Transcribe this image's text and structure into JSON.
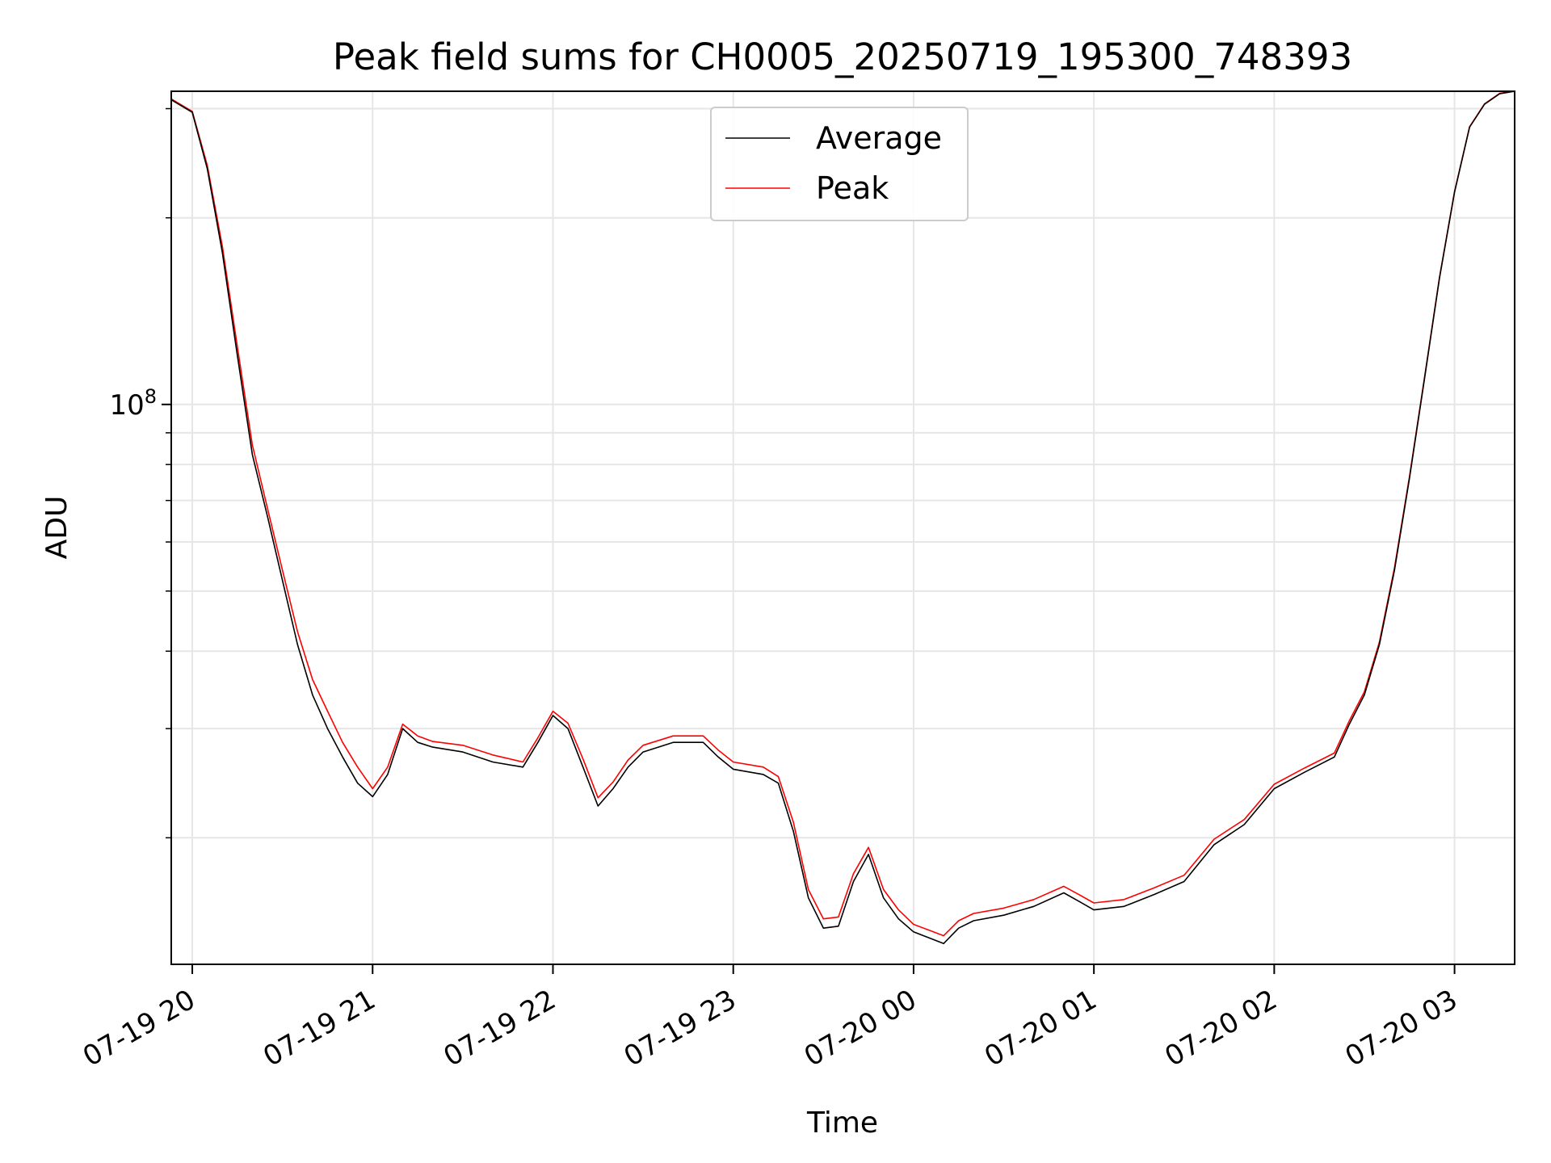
{
  "chart_data": {
    "type": "line",
    "title": "Peak field sums for CH0005_20250719_195300_748393",
    "xlabel": "Time",
    "ylabel": "ADU",
    "yscale": "log",
    "xlim": [
      "2025-07-19 19:53",
      "2025-07-20 03:20"
    ],
    "ylim": [
      12500000,
      320000000
    ],
    "grid": true,
    "legend_position": "top-center",
    "x_ticks": [
      "07-19 20",
      "07-19 21",
      "07-19 22",
      "07-19 23",
      "07-20 00",
      "07-20 01",
      "07-20 02",
      "07-20 03"
    ],
    "y_ticks": [
      {
        "value": 100000000,
        "base": "10",
        "exponent": "8"
      }
    ],
    "x": [
      "2025-07-19 19:53",
      "2025-07-19 20:00",
      "2025-07-19 20:05",
      "2025-07-19 20:10",
      "2025-07-19 20:15",
      "2025-07-19 20:20",
      "2025-07-19 20:25",
      "2025-07-19 20:30",
      "2025-07-19 20:35",
      "2025-07-19 20:40",
      "2025-07-19 20:45",
      "2025-07-19 20:50",
      "2025-07-19 20:55",
      "2025-07-19 21:00",
      "2025-07-19 21:05",
      "2025-07-19 21:10",
      "2025-07-19 21:15",
      "2025-07-19 21:20",
      "2025-07-19 21:30",
      "2025-07-19 21:40",
      "2025-07-19 21:50",
      "2025-07-19 21:55",
      "2025-07-19 22:00",
      "2025-07-19 22:05",
      "2025-07-19 22:10",
      "2025-07-19 22:15",
      "2025-07-19 22:20",
      "2025-07-19 22:25",
      "2025-07-19 22:30",
      "2025-07-19 22:40",
      "2025-07-19 22:50",
      "2025-07-19 22:55",
      "2025-07-19 23:00",
      "2025-07-19 23:10",
      "2025-07-19 23:15",
      "2025-07-19 23:20",
      "2025-07-19 23:25",
      "2025-07-19 23:30",
      "2025-07-19 23:35",
      "2025-07-19 23:40",
      "2025-07-19 23:45",
      "2025-07-19 23:50",
      "2025-07-19 23:55",
      "2025-07-20 00:00",
      "2025-07-20 00:05",
      "2025-07-20 00:10",
      "2025-07-20 00:15",
      "2025-07-20 00:20",
      "2025-07-20 00:30",
      "2025-07-20 00:40",
      "2025-07-20 00:50",
      "2025-07-20 00:55",
      "2025-07-20 01:00",
      "2025-07-20 01:10",
      "2025-07-20 01:20",
      "2025-07-20 01:30",
      "2025-07-20 01:40",
      "2025-07-20 01:50",
      "2025-07-20 02:00",
      "2025-07-20 02:10",
      "2025-07-20 02:20",
      "2025-07-20 02:25",
      "2025-07-20 02:30",
      "2025-07-20 02:35",
      "2025-07-20 02:40",
      "2025-07-20 02:45",
      "2025-07-20 02:50",
      "2025-07-20 02:55",
      "2025-07-20 03:00",
      "2025-07-20 03:05",
      "2025-07-20 03:10",
      "2025-07-20 03:15",
      "2025-07-20 03:20"
    ],
    "series": [
      {
        "name": "Average",
        "color": "#000000",
        "values": [
          310000000,
          296000000,
          240000000,
          176000000,
          120000000,
          83000000,
          66000000,
          52000000,
          41000000,
          34000000,
          30000000,
          27000000,
          24500000,
          23300000,
          25300000,
          30000000,
          28500000,
          28000000,
          27500000,
          26500000,
          26000000,
          28500000,
          31500000,
          30000000,
          26000000,
          22500000,
          24000000,
          26000000,
          27500000,
          28500000,
          28500000,
          27000000,
          25800000,
          25300000,
          24500000,
          20500000,
          16000000,
          14300000,
          14400000,
          17000000,
          18800000,
          16000000,
          14800000,
          14100000,
          13800000,
          13500000,
          14300000,
          14700000,
          15000000,
          15500000,
          16300000,
          15800000,
          15300000,
          15500000,
          16200000,
          17000000,
          19500000,
          21000000,
          24000000,
          25500000,
          27000000,
          30500000,
          34000000,
          41000000,
          54000000,
          76000000,
          110000000,
          160000000,
          220000000,
          280000000,
          305000000,
          317000000,
          320000000
        ]
      },
      {
        "name": "Peak",
        "color": "#ff0000",
        "values": [
          311000000,
          297000000,
          243000000,
          180000000,
          124000000,
          86000000,
          68000000,
          54000000,
          43000000,
          36000000,
          32000000,
          28500000,
          26000000,
          24000000,
          26000000,
          30500000,
          29200000,
          28600000,
          28200000,
          27200000,
          26500000,
          29000000,
          32000000,
          30600000,
          26800000,
          23200000,
          24600000,
          26700000,
          28200000,
          29200000,
          29200000,
          27700000,
          26500000,
          26000000,
          25100000,
          21200000,
          16500000,
          14800000,
          14900000,
          17500000,
          19300000,
          16500000,
          15300000,
          14500000,
          14200000,
          13900000,
          14700000,
          15100000,
          15400000,
          15900000,
          16700000,
          16200000,
          15700000,
          15900000,
          16600000,
          17400000,
          19900000,
          21400000,
          24400000,
          25900000,
          27400000,
          30900000,
          34400000,
          41400000,
          54500000,
          76500000,
          110500000,
          160500000,
          220500000,
          280500000,
          305500000,
          317500000,
          320000000
        ]
      }
    ]
  }
}
